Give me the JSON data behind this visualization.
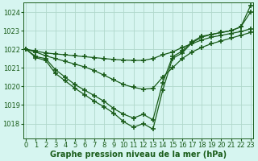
{
  "title": "Graphe pression niveau de la mer (hPa)",
  "bg_color": "#d6f5f0",
  "grid_color": "#b0d8cc",
  "line_color": "#1a5c1a",
  "ylim": [
    1017.2,
    1024.5
  ],
  "xlim": [
    -0.3,
    23.3
  ],
  "yticks": [
    1018,
    1019,
    1020,
    1021,
    1022,
    1023,
    1024
  ],
  "xticks": [
    0,
    1,
    2,
    3,
    4,
    5,
    6,
    7,
    8,
    9,
    10,
    11,
    12,
    13,
    14,
    15,
    16,
    17,
    18,
    19,
    20,
    21,
    22,
    23
  ],
  "series": [
    [
      1022.0,
      1021.9,
      1021.8,
      1021.75,
      1021.7,
      1021.65,
      1021.6,
      1021.55,
      1021.5,
      1021.45,
      1021.42,
      1021.4,
      1021.4,
      1021.5,
      1021.7,
      1021.85,
      1022.1,
      1022.3,
      1022.5,
      1022.65,
      1022.75,
      1022.85,
      1022.95,
      1023.1
    ],
    [
      1022.0,
      1021.85,
      1021.65,
      1021.5,
      1021.35,
      1021.2,
      1021.05,
      1020.85,
      1020.6,
      1020.35,
      1020.1,
      1019.95,
      1019.85,
      1019.9,
      1020.5,
      1021.0,
      1021.5,
      1021.85,
      1022.1,
      1022.3,
      1022.45,
      1022.6,
      1022.75,
      1022.9
    ],
    [
      1022.0,
      1021.6,
      1021.5,
      1020.9,
      1020.5,
      1020.1,
      1019.8,
      1019.5,
      1019.2,
      1018.8,
      1018.5,
      1018.3,
      1018.5,
      1018.2,
      1020.2,
      1021.6,
      1021.9,
      1022.4,
      1022.7,
      1022.8,
      1022.9,
      1023.0,
      1023.2,
      1024.0
    ],
    [
      1022.0,
      1021.55,
      1021.4,
      1020.7,
      1020.3,
      1019.9,
      1019.55,
      1019.2,
      1018.9,
      1018.55,
      1018.1,
      1017.8,
      1018.0,
      1017.7,
      1019.8,
      1021.5,
      1021.8,
      1022.35,
      1022.65,
      1022.8,
      1022.9,
      1023.0,
      1023.2,
      1024.35
    ]
  ],
  "marker": "+",
  "markersize": 4,
  "markeredgewidth": 1.2,
  "linewidth": 0.9,
  "title_fontsize": 7,
  "tick_labelsize": 6
}
